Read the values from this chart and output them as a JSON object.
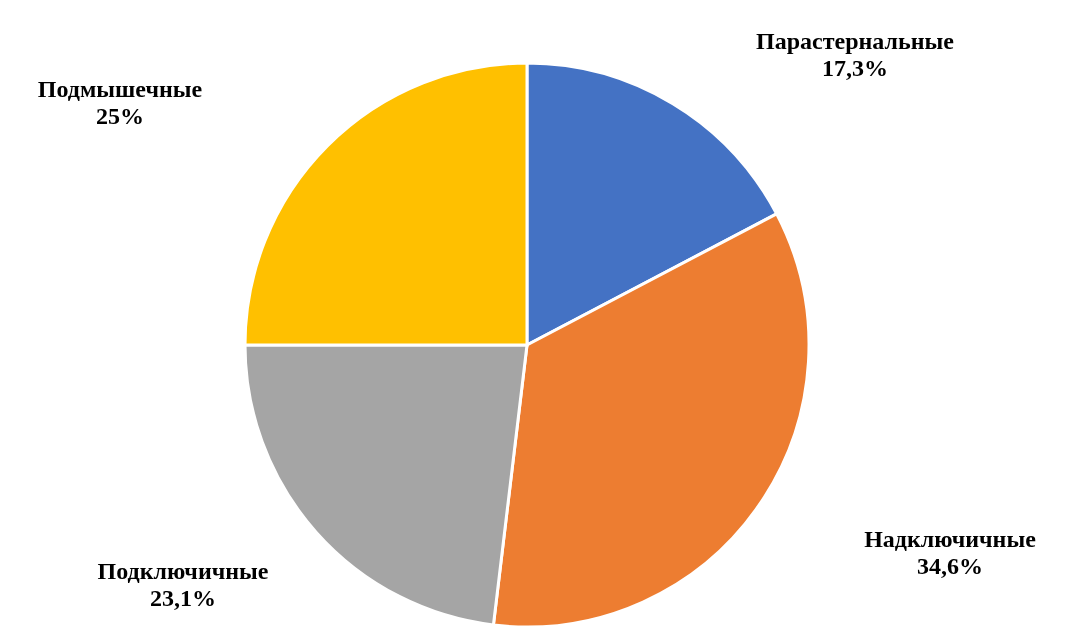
{
  "chart_data": {
    "type": "pie",
    "categories": [
      "Парастернальные",
      "Надключичные",
      "Подключичные",
      "Подмышечные"
    ],
    "values": [
      17.3,
      34.6,
      23.1,
      25
    ],
    "value_labels": [
      "17,3%",
      "34,6%",
      "23,1%",
      "25%"
    ],
    "colors": [
      "#4472c4",
      "#ed7d31",
      "#a5a5a5",
      "#ffc000"
    ]
  }
}
